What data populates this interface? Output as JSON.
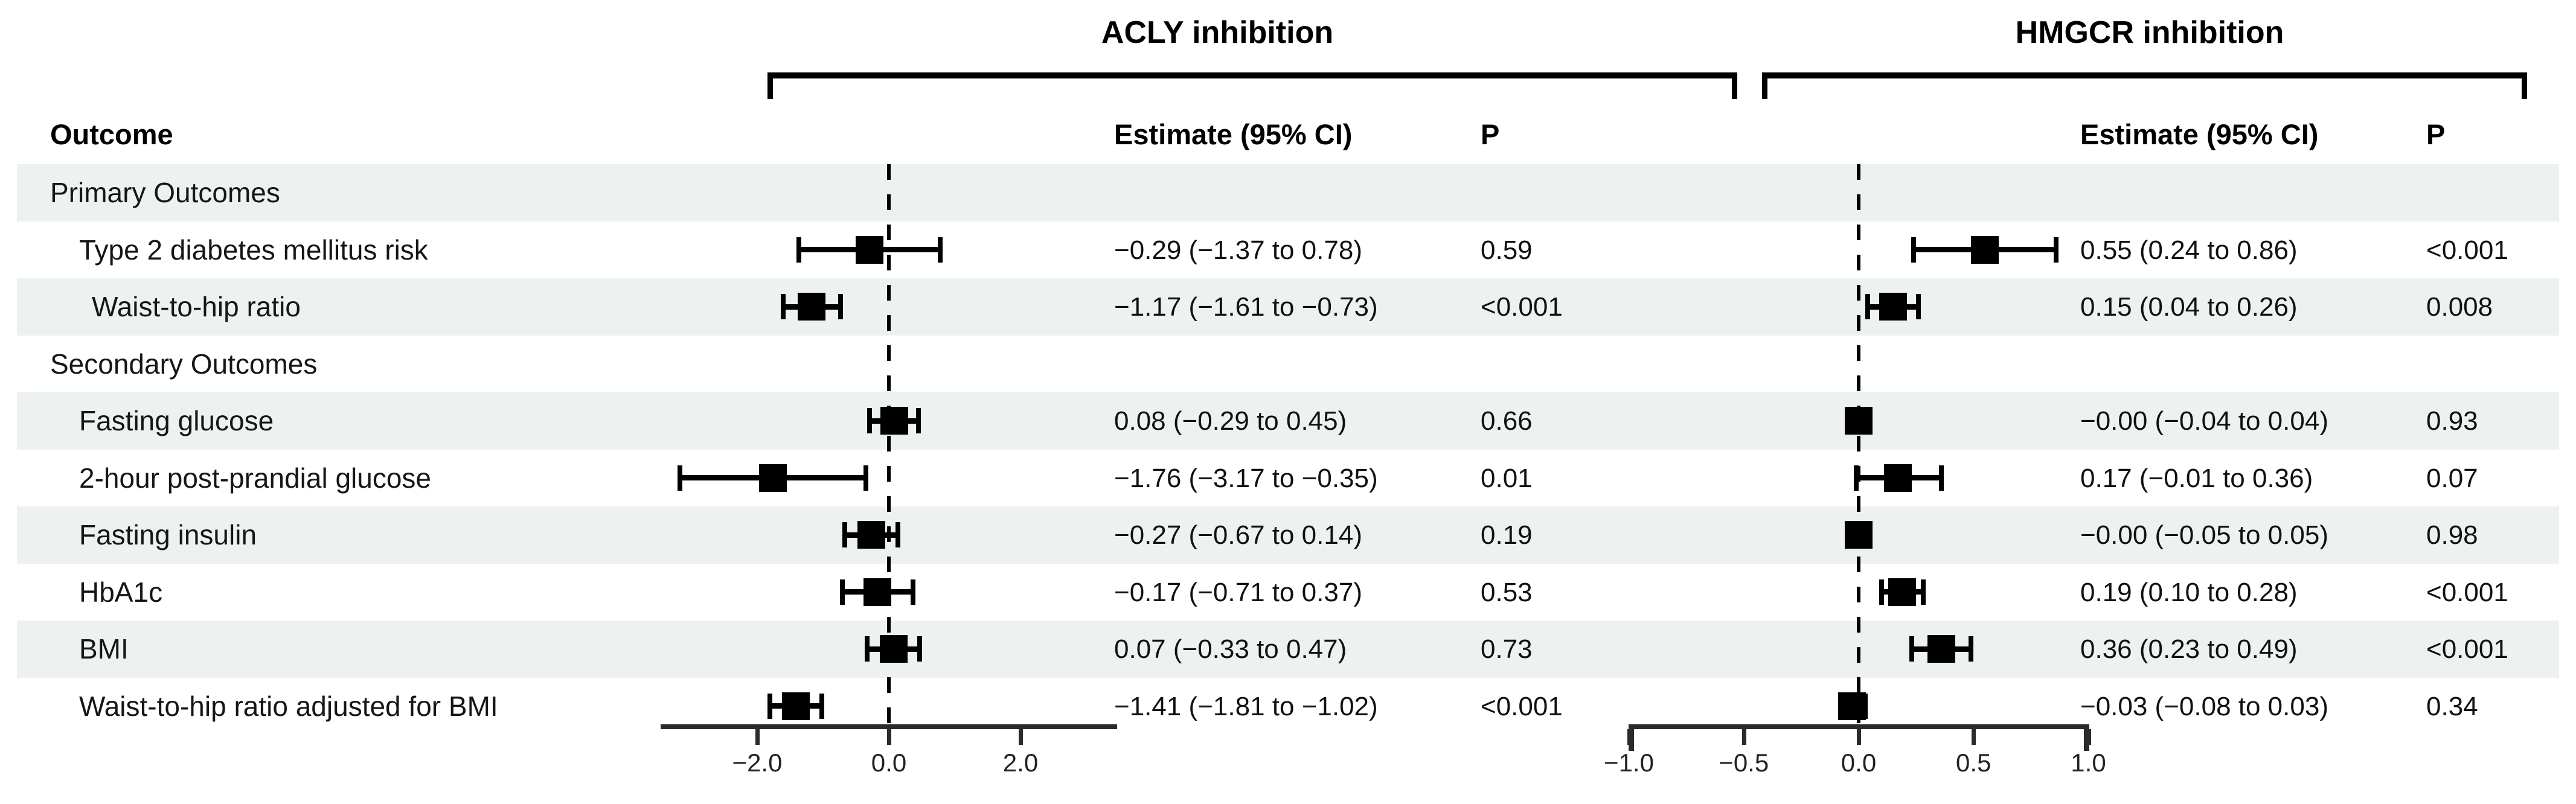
{
  "figure": {
    "outcome_header": "Outcome",
    "groups": [
      {
        "label": "ACLY inhibition",
        "estimate_header": "Estimate (95% CI)",
        "p_header": "P"
      },
      {
        "label": "HMGCR inhibition",
        "estimate_header": "Estimate (95% CI)",
        "p_header": "P"
      }
    ]
  },
  "rows": [
    {
      "label": "Primary Outcomes",
      "indent": 0,
      "shaded": true,
      "group": true,
      "acly_est": "",
      "acly_p": "",
      "hmgcr_est": "",
      "hmgcr_p": ""
    },
    {
      "label": "Type 2 diabetes mellitus risk",
      "indent": 1,
      "shaded": false,
      "group": false,
      "acly_est": "−0.29 (−1.37 to 0.78)",
      "acly_p": "0.59",
      "hmgcr_est": "0.55 (0.24 to 0.86)",
      "hmgcr_p": "<0.001"
    },
    {
      "label": "Waist-to-hip ratio",
      "indent": 2,
      "shaded": true,
      "group": false,
      "acly_est": "−1.17 (−1.61 to −0.73)",
      "acly_p": "<0.001",
      "hmgcr_est": "0.15 (0.04 to 0.26)",
      "hmgcr_p": "0.008"
    },
    {
      "label": "Secondary Outcomes",
      "indent": 0,
      "shaded": false,
      "group": true,
      "acly_est": "",
      "acly_p": "",
      "hmgcr_est": "",
      "hmgcr_p": ""
    },
    {
      "label": "Fasting glucose",
      "indent": 1,
      "shaded": true,
      "group": false,
      "acly_est": "0.08 (−0.29 to 0.45)",
      "acly_p": "0.66",
      "hmgcr_est": "−0.00 (−0.04 to 0.04)",
      "hmgcr_p": "0.93"
    },
    {
      "label": "2-hour post-prandial glucose",
      "indent": 1,
      "shaded": false,
      "group": false,
      "acly_est": "−1.76 (−3.17 to −0.35)",
      "acly_p": "0.01",
      "hmgcr_est": "0.17 (−0.01 to 0.36)",
      "hmgcr_p": "0.07"
    },
    {
      "label": "Fasting insulin",
      "indent": 1,
      "shaded": true,
      "group": false,
      "acly_est": "−0.27 (−0.67 to 0.14)",
      "acly_p": "0.19",
      "hmgcr_est": "−0.00 (−0.05 to 0.05)",
      "hmgcr_p": "0.98"
    },
    {
      "label": "HbA1c",
      "indent": 1,
      "shaded": false,
      "group": false,
      "acly_est": "−0.17 (−0.71 to 0.37)",
      "acly_p": "0.53",
      "hmgcr_est": "0.19 (0.10 to 0.28)",
      "hmgcr_p": "<0.001"
    },
    {
      "label": "BMI",
      "indent": 1,
      "shaded": true,
      "group": false,
      "acly_est": "0.07 (−0.33 to 0.47)",
      "acly_p": "0.73",
      "hmgcr_est": "0.36 (0.23 to 0.49)",
      "hmgcr_p": "<0.001"
    },
    {
      "label": "Waist-to-hip ratio adjusted for BMI",
      "indent": 1,
      "shaded": false,
      "group": false,
      "acly_est": "−1.41 (−1.81 to −1.02)",
      "acly_p": "<0.001",
      "hmgcr_est": "−0.03 (−0.08 to 0.03)",
      "hmgcr_p": "0.34"
    }
  ],
  "chart_data": [
    {
      "type": "scatter",
      "variant": "forest-plot",
      "title": "ACLY inhibition",
      "xlabel": "",
      "ylabel": "",
      "xlim": [
        -3.5,
        3.5
      ],
      "xticks": [
        -2.0,
        0.0,
        2.0
      ],
      "xtick_labels": [
        "−2.0",
        "0.0",
        "2.0"
      ],
      "zero_line": 0,
      "grid": false,
      "legend": "none",
      "categories": [
        "Primary Outcomes",
        "Type 2 diabetes mellitus risk",
        "Waist-to-hip ratio",
        "Secondary Outcomes",
        "Fasting glucose",
        "2-hour post-prandial glucose",
        "Fasting insulin",
        "HbA1c",
        "BMI",
        "Waist-to-hip ratio adjusted for BMI"
      ],
      "series": [
        {
          "name": "estimate",
          "values": [
            null,
            -0.29,
            -1.17,
            null,
            0.08,
            -1.76,
            -0.27,
            -0.17,
            0.07,
            -1.41
          ]
        },
        {
          "name": "ci_low",
          "values": [
            null,
            -1.37,
            -1.61,
            null,
            -0.29,
            -3.17,
            -0.67,
            -0.71,
            -0.33,
            -1.81
          ]
        },
        {
          "name": "ci_high",
          "values": [
            null,
            0.78,
            -0.73,
            null,
            0.45,
            -0.35,
            0.14,
            0.37,
            0.47,
            -1.02
          ]
        }
      ],
      "p_values": [
        null,
        "0.59",
        "<0.001",
        null,
        "0.66",
        "0.01",
        "0.19",
        "0.53",
        "0.73",
        "<0.001"
      ]
    },
    {
      "type": "scatter",
      "variant": "forest-plot",
      "title": "HMGCR inhibition",
      "xlabel": "",
      "ylabel": "",
      "xlim": [
        -1.0,
        1.0
      ],
      "xticks": [
        -1.0,
        -0.5,
        0.0,
        0.5,
        1.0
      ],
      "xtick_labels": [
        "−1.0",
        "−0.5",
        "0.0",
        "0.5",
        "1.0"
      ],
      "zero_line": 0,
      "grid": false,
      "legend": "none",
      "categories": [
        "Primary Outcomes",
        "Type 2 diabetes mellitus risk",
        "Waist-to-hip ratio",
        "Secondary Outcomes",
        "Fasting glucose",
        "2-hour post-prandial glucose",
        "Fasting insulin",
        "HbA1c",
        "BMI",
        "Waist-to-hip ratio adjusted for BMI"
      ],
      "series": [
        {
          "name": "estimate",
          "values": [
            null,
            0.55,
            0.15,
            null,
            -0.0,
            0.17,
            -0.0,
            0.19,
            0.36,
            -0.03
          ]
        },
        {
          "name": "ci_low",
          "values": [
            null,
            0.24,
            0.04,
            null,
            -0.04,
            -0.01,
            -0.05,
            0.1,
            0.23,
            -0.08
          ]
        },
        {
          "name": "ci_high",
          "values": [
            null,
            0.86,
            0.26,
            null,
            0.04,
            0.36,
            0.05,
            0.28,
            0.49,
            0.03
          ]
        }
      ],
      "p_values": [
        null,
        "<0.001",
        "0.008",
        null,
        "0.93",
        "0.07",
        "0.98",
        "<0.001",
        "<0.001",
        "0.34"
      ]
    }
  ]
}
